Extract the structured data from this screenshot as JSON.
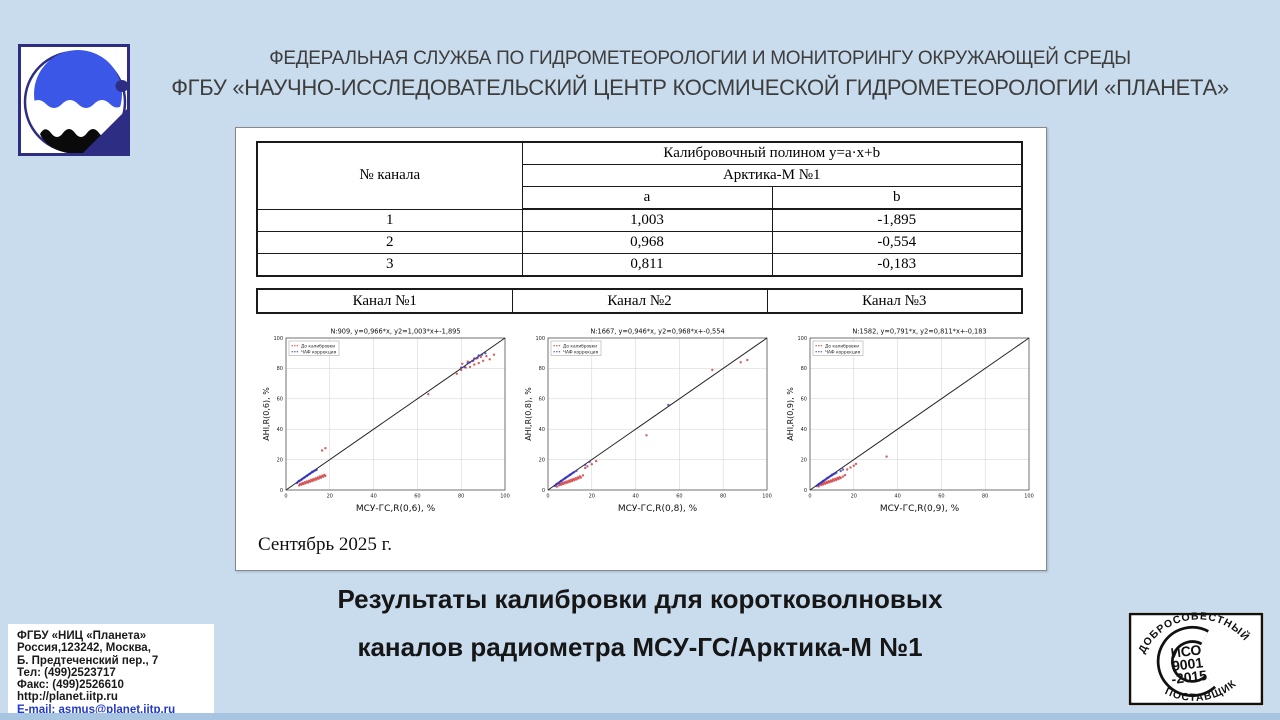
{
  "header": {
    "line1": "ФЕДЕРАЛЬНАЯ СЛУЖБА ПО ГИДРОМЕТЕОРОЛОГИИ И МОНИТОРИНГУ ОКРУЖАЮЩЕЙ СРЕДЫ",
    "line2": "ФГБУ «НАУЧНО-ИССЛЕДОВАТЕЛЬСКИЙ ЦЕНТР КОСМИЧЕСКОЙ ГИДРОМЕТЕОРОЛОГИИ «ПЛАНЕТА»"
  },
  "calibration_table": {
    "corner": "№ канала",
    "header1": "Калибровочный полином y=a·x+b",
    "header2": "Арктика-М №1",
    "col_a": "a",
    "col_b": "b",
    "rows": [
      [
        "1",
        "1,003",
        "-1,895"
      ],
      [
        "2",
        "0,968",
        "-0,554"
      ],
      [
        "3",
        "0,811",
        "-0,183"
      ]
    ]
  },
  "channels_table": {
    "items": [
      "Канал №1",
      "Канал №2",
      "Канал №3"
    ]
  },
  "date_caption": "Сентябрь 2025 г.",
  "title": {
    "line1": "Результаты калибровки для коротковолновых",
    "line2": "каналов радиометра МСУ-ГС/Арктика-М №1"
  },
  "contact_box": {
    "lines": [
      "ФГБУ «НИЦ «Планета»",
      "Россия,123242, Москва,",
      "Б. Предтеченский пер., 7",
      "Тел:   (499)2523717",
      "Факс: (499)2526610",
      "http://planet.iitp.ru",
      "E-mail: asmus@planet.iitp.ru"
    ]
  },
  "stamp": {
    "top": "ДОБРОСОВЕСТНЫЙ",
    "center_lines": [
      "ИСО",
      "9001",
      "-2015"
    ],
    "bottom": "ПОСТАВЩИК"
  },
  "colors": {
    "background": "#c9dcee",
    "bottom_strip": "#a7c4e1",
    "logo_blue": "#3a57e8",
    "logo_navy": "#2d2e83",
    "email_link": "#2238c8",
    "series_before": "#cc3333",
    "series_after": "#3333bb"
  },
  "chart_data": [
    {
      "type": "scatter",
      "n": 909,
      "title": "N:909, y=0,966*x, y2=1,003*x+-1,895",
      "xlabel": "МСУ-ГС,R(0,6), %",
      "ylabel": "AHI,R(0,6), %",
      "xlim": [
        0,
        100
      ],
      "ylim": [
        0,
        100
      ],
      "ticks": [
        0,
        20,
        40,
        60,
        80,
        100
      ],
      "grid": true,
      "legend_position": "upper left",
      "diagonal": [
        [
          0,
          0
        ],
        [
          100,
          100
        ]
      ],
      "series": [
        {
          "name": "До калибровки",
          "color": "#cc3333",
          "points": [
            [
              6,
              3
            ],
            [
              6.5,
              4
            ],
            [
              7,
              3.4
            ],
            [
              7.5,
              4.6
            ],
            [
              8,
              3.9
            ],
            [
              8.5,
              5.1
            ],
            [
              9,
              4.4
            ],
            [
              9.5,
              5.6
            ],
            [
              10,
              4.9
            ],
            [
              10.5,
              6.1
            ],
            [
              11,
              5.4
            ],
            [
              11.5,
              6.7
            ],
            [
              12,
              5.9
            ],
            [
              12.5,
              7.2
            ],
            [
              13,
              6.4
            ],
            [
              13.5,
              7.7
            ],
            [
              14,
              6.9
            ],
            [
              14.5,
              8.3
            ],
            [
              15,
              7.5
            ],
            [
              15.5,
              8.9
            ],
            [
              16,
              8.1
            ],
            [
              16.5,
              9.4
            ],
            [
              17,
              8.7
            ],
            [
              17.5,
              10
            ],
            [
              18,
              9.3
            ],
            [
              16.5,
              26
            ],
            [
              18,
              27.5
            ],
            [
              65,
              63
            ],
            [
              78,
              76.5
            ],
            [
              80,
              79
            ],
            [
              80.5,
              83
            ],
            [
              82,
              80.5
            ],
            [
              83,
              84.5
            ],
            [
              84,
              81
            ],
            [
              85,
              85
            ],
            [
              86,
              82.5
            ],
            [
              87,
              86.5
            ],
            [
              88,
              83.5
            ],
            [
              89,
              87.5
            ],
            [
              90,
              85
            ],
            [
              91.5,
              88
            ],
            [
              93,
              86
            ],
            [
              95,
              89
            ]
          ]
        },
        {
          "name": "ЧАФ коррекция",
          "color": "#3333bb",
          "points": [
            [
              5,
              4.6
            ],
            [
              5.5,
              5.4
            ],
            [
              6,
              5.8
            ],
            [
              6.5,
              6.3
            ],
            [
              7,
              6.8
            ],
            [
              7.5,
              7.3
            ],
            [
              8,
              7.8
            ],
            [
              8.5,
              8.3
            ],
            [
              9,
              8.8
            ],
            [
              9.5,
              9.3
            ],
            [
              10,
              9.8
            ],
            [
              10.5,
              10.3
            ],
            [
              11,
              10.8
            ],
            [
              11.5,
              11.3
            ],
            [
              12,
              11.8
            ],
            [
              12.5,
              12.2
            ],
            [
              13,
              12.6
            ],
            [
              13.5,
              13
            ],
            [
              14,
              13.3
            ],
            [
              6,
              6
            ],
            [
              7.2,
              7
            ],
            [
              8.4,
              8.2
            ],
            [
              9.6,
              9.4
            ],
            [
              10.8,
              10.6
            ],
            [
              12,
              12
            ],
            [
              80,
              80.5
            ],
            [
              81.5,
              81
            ],
            [
              83,
              83.5
            ],
            [
              84,
              84
            ],
            [
              85.5,
              85
            ],
            [
              86,
              86.5
            ],
            [
              87.5,
              87
            ],
            [
              88,
              88.5
            ],
            [
              89.5,
              89
            ],
            [
              91,
              90
            ]
          ]
        }
      ]
    },
    {
      "type": "scatter",
      "n": 1667,
      "title": "N:1667, y=0,946*x, y2=0,968*x+-0,554",
      "xlabel": "МСУ-ГС,R(0,8), %",
      "ylabel": "AHI,R(0,8), %",
      "xlim": [
        0,
        100
      ],
      "ylim": [
        0,
        100
      ],
      "ticks": [
        0,
        20,
        40,
        60,
        80,
        100
      ],
      "grid": true,
      "legend_position": "upper left",
      "diagonal": [
        [
          0,
          0
        ],
        [
          100,
          100
        ]
      ],
      "series": [
        {
          "name": "До калибровки",
          "color": "#cc3333",
          "points": [
            [
              4,
              2.2
            ],
            [
              5,
              3
            ],
            [
              5.5,
              4
            ],
            [
              6,
              3.4
            ],
            [
              6.5,
              4.6
            ],
            [
              7,
              3.9
            ],
            [
              7.5,
              5.1
            ],
            [
              8,
              4.4
            ],
            [
              8.5,
              5.6
            ],
            [
              9,
              4.9
            ],
            [
              9.5,
              6.1
            ],
            [
              10,
              5.4
            ],
            [
              10.5,
              6.7
            ],
            [
              11,
              5.9
            ],
            [
              11.5,
              7.2
            ],
            [
              12,
              6.4
            ],
            [
              12.5,
              7.7
            ],
            [
              13,
              7
            ],
            [
              13.5,
              8.3
            ],
            [
              14,
              7.6
            ],
            [
              14.5,
              9
            ],
            [
              15,
              8.2
            ],
            [
              16,
              9.6
            ],
            [
              17,
              14.5
            ],
            [
              18,
              15.5
            ],
            [
              20,
              17
            ],
            [
              22,
              19
            ],
            [
              45,
              36
            ],
            [
              75,
              79
            ],
            [
              88,
              84
            ],
            [
              91,
              85.5
            ]
          ]
        },
        {
          "name": "ЧАФ коррекция",
          "color": "#3333bb",
          "points": [
            [
              3,
              2.6
            ],
            [
              3.5,
              3.3
            ],
            [
              4,
              3.8
            ],
            [
              4.5,
              4.4
            ],
            [
              5,
              4.9
            ],
            [
              5.5,
              5.4
            ],
            [
              6,
              5.9
            ],
            [
              6.5,
              6.4
            ],
            [
              7,
              6.9
            ],
            [
              7.5,
              7.4
            ],
            [
              8,
              7.9
            ],
            [
              8.5,
              8.4
            ],
            [
              9,
              8.9
            ],
            [
              9.5,
              9.4
            ],
            [
              10,
              9.9
            ],
            [
              10.5,
              10.4
            ],
            [
              11,
              10.9
            ],
            [
              11.5,
              11.4
            ],
            [
              12,
              11.8
            ],
            [
              13,
              12.6
            ],
            [
              4,
              4
            ],
            [
              6,
              6
            ],
            [
              8,
              8
            ],
            [
              10,
              10
            ],
            [
              17,
              16.5
            ],
            [
              19,
              18.5
            ],
            [
              55,
              56
            ]
          ]
        }
      ]
    },
    {
      "type": "scatter",
      "n": 1582,
      "title": "N:1582, y=0,791*x, y2=0,811*x+-0,183",
      "xlabel": "МСУ-ГС,R(0,9), %",
      "ylabel": "AHI,R(0,9), %",
      "xlim": [
        0,
        100
      ],
      "ylim": [
        0,
        100
      ],
      "ticks": [
        0,
        20,
        40,
        60,
        80,
        100
      ],
      "grid": true,
      "legend_position": "upper left",
      "diagonal": [
        [
          0,
          0
        ],
        [
          100,
          100
        ]
      ],
      "series": [
        {
          "name": "До калибровки",
          "color": "#cc3333",
          "points": [
            [
              4,
              2.4
            ],
            [
              5,
              3.2
            ],
            [
              5.5,
              4.2
            ],
            [
              6,
              3.6
            ],
            [
              6.5,
              4.8
            ],
            [
              7,
              4.1
            ],
            [
              7.5,
              5.3
            ],
            [
              8,
              4.6
            ],
            [
              8.5,
              5.8
            ],
            [
              9,
              5.1
            ],
            [
              9.5,
              6.3
            ],
            [
              10,
              5.6
            ],
            [
              10.5,
              6.9
            ],
            [
              11,
              6.1
            ],
            [
              11.5,
              7.4
            ],
            [
              12,
              6.6
            ],
            [
              12.5,
              7.9
            ],
            [
              13,
              7.2
            ],
            [
              13.5,
              8.5
            ],
            [
              14,
              7.8
            ],
            [
              15,
              8.8
            ],
            [
              16,
              9.8
            ],
            [
              17,
              13.5
            ],
            [
              18.5,
              14.8
            ],
            [
              20,
              16
            ],
            [
              21,
              17.2
            ],
            [
              35,
              22
            ]
          ]
        },
        {
          "name": "ЧАФ коррекция",
          "color": "#3333bb",
          "points": [
            [
              3,
              2.6
            ],
            [
              3.5,
              3.2
            ],
            [
              4,
              3.7
            ],
            [
              4.5,
              4.3
            ],
            [
              5,
              4.8
            ],
            [
              5.5,
              5.3
            ],
            [
              6,
              5.8
            ],
            [
              6.5,
              6.3
            ],
            [
              7,
              6.8
            ],
            [
              7.5,
              7.3
            ],
            [
              8,
              7.8
            ],
            [
              8.5,
              8.3
            ],
            [
              9,
              8.8
            ],
            [
              9.5,
              9.3
            ],
            [
              10,
              9.7
            ],
            [
              10.5,
              10.2
            ],
            [
              11,
              10.6
            ],
            [
              11.5,
              11
            ],
            [
              12,
              11.4
            ],
            [
              4,
              4
            ],
            [
              6,
              6
            ],
            [
              8,
              8
            ],
            [
              10,
              10
            ],
            [
              14,
              12.5
            ],
            [
              15,
              13.5
            ]
          ]
        }
      ]
    }
  ]
}
